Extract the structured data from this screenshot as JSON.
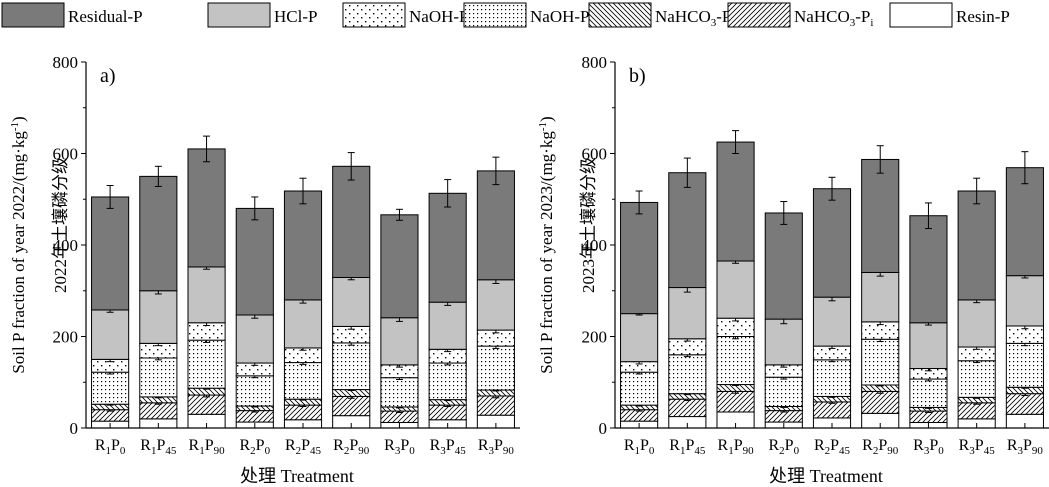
{
  "chart_data": [
    {
      "type": "bar",
      "stacked": true,
      "panel_label": "a)",
      "ylabel": "Soil P fraction of year 2022/(mg·kg⁻¹)",
      "ylabel_cn": "2022年土壤磷分级",
      "xlabel": "处理 Treatment",
      "ylim": [
        0,
        800
      ],
      "yticks": [
        0,
        200,
        400,
        600,
        800
      ],
      "categories": [
        {
          "main": "R",
          "s1": "1",
          "mid": "P",
          "s2": "0"
        },
        {
          "main": "R",
          "s1": "1",
          "mid": "P",
          "s2": "45"
        },
        {
          "main": "R",
          "s1": "1",
          "mid": "P",
          "s2": "90"
        },
        {
          "main": "R",
          "s1": "2",
          "mid": "P",
          "s2": "0"
        },
        {
          "main": "R",
          "s1": "2",
          "mid": "P",
          "s2": "45"
        },
        {
          "main": "R",
          "s1": "2",
          "mid": "P",
          "s2": "90"
        },
        {
          "main": "R",
          "s1": "3",
          "mid": "P",
          "s2": "0"
        },
        {
          "main": "R",
          "s1": "3",
          "mid": "P",
          "s2": "45"
        },
        {
          "main": "R",
          "s1": "3",
          "mid": "P",
          "s2": "90"
        }
      ],
      "series": [
        {
          "name": "Resin-P",
          "values": [
            15,
            20,
            30,
            13,
            18,
            27,
            12,
            18,
            28
          ],
          "errors": [
            0,
            0,
            0,
            0,
            0,
            0,
            0,
            0,
            0
          ]
        },
        {
          "name": "NaHCO3-Pi",
          "values": [
            25,
            35,
            42,
            25,
            32,
            42,
            25,
            32,
            42
          ],
          "errors": [
            3,
            3,
            4,
            3,
            3,
            4,
            3,
            3,
            4
          ]
        },
        {
          "name": "NaHCO3-Po",
          "values": [
            12,
            13,
            15,
            10,
            13,
            15,
            9,
            12,
            13
          ],
          "errors": [
            2,
            2,
            2,
            2,
            2,
            2,
            2,
            2,
            2
          ]
        },
        {
          "name": "NaOH-Pi",
          "values": [
            70,
            85,
            105,
            66,
            80,
            102,
            64,
            80,
            96
          ],
          "errors": [
            4,
            4,
            5,
            4,
            4,
            5,
            4,
            4,
            5
          ]
        },
        {
          "name": "NaOH-Po",
          "values": [
            28,
            32,
            38,
            28,
            32,
            36,
            28,
            30,
            35
          ],
          "errors": [
            5,
            5,
            6,
            5,
            5,
            6,
            5,
            5,
            6
          ]
        },
        {
          "name": "HCl-P",
          "values": [
            108,
            115,
            122,
            105,
            105,
            107,
            103,
            103,
            110
          ],
          "errors": [
            5,
            7,
            5,
            7,
            7,
            5,
            8,
            7,
            8
          ]
        },
        {
          "name": "Residual-P",
          "values": [
            247,
            250,
            258,
            233,
            238,
            243,
            225,
            238,
            238
          ],
          "errors": [
            25,
            22,
            28,
            25,
            28,
            30,
            12,
            30,
            30
          ]
        }
      ]
    },
    {
      "type": "bar",
      "stacked": true,
      "panel_label": "b)",
      "ylabel": "Soil P fraction of year 2023/(mg·kg⁻¹)",
      "ylabel_cn": "2023年土壤磷分级",
      "xlabel": "处理 Treatment",
      "ylim": [
        0,
        800
      ],
      "yticks": [
        0,
        200,
        400,
        600,
        800
      ],
      "categories": [
        {
          "main": "R",
          "s1": "1",
          "mid": "P",
          "s2": "0"
        },
        {
          "main": "R",
          "s1": "1",
          "mid": "P",
          "s2": "45"
        },
        {
          "main": "R",
          "s1": "1",
          "mid": "P",
          "s2": "90"
        },
        {
          "main": "R",
          "s1": "2",
          "mid": "P",
          "s2": "0"
        },
        {
          "main": "R",
          "s1": "2",
          "mid": "P",
          "s2": "45"
        },
        {
          "main": "R",
          "s1": "2",
          "mid": "P",
          "s2": "90"
        },
        {
          "main": "R",
          "s1": "3",
          "mid": "P",
          "s2": "0"
        },
        {
          "main": "R",
          "s1": "3",
          "mid": "P",
          "s2": "45"
        },
        {
          "main": "R",
          "s1": "3",
          "mid": "P",
          "s2": "90"
        }
      ],
      "series": [
        {
          "name": "Resin-P",
          "values": [
            15,
            25,
            35,
            13,
            22,
            32,
            12,
            20,
            30
          ],
          "errors": [
            0,
            0,
            0,
            0,
            0,
            0,
            0,
            0,
            0
          ]
        },
        {
          "name": "NaHCO3-Pi",
          "values": [
            25,
            38,
            45,
            25,
            35,
            48,
            25,
            35,
            45
          ],
          "errors": [
            3,
            3,
            4,
            3,
            3,
            4,
            3,
            3,
            4
          ]
        },
        {
          "name": "NaHCO3-Po",
          "values": [
            10,
            12,
            15,
            9,
            12,
            14,
            8,
            12,
            14
          ],
          "errors": [
            2,
            2,
            2,
            2,
            2,
            2,
            2,
            2,
            2
          ]
        },
        {
          "name": "NaOH-Pi",
          "values": [
            72,
            85,
            105,
            64,
            80,
            100,
            62,
            80,
            96
          ],
          "errors": [
            4,
            4,
            5,
            4,
            4,
            5,
            4,
            4,
            5
          ]
        },
        {
          "name": "NaOH-Po",
          "values": [
            23,
            35,
            40,
            27,
            30,
            38,
            23,
            30,
            38
          ],
          "errors": [
            5,
            5,
            6,
            5,
            5,
            6,
            5,
            5,
            6
          ]
        },
        {
          "name": "HCl-P",
          "values": [
            105,
            112,
            125,
            100,
            107,
            108,
            100,
            103,
            110
          ],
          "errors": [
            3,
            10,
            5,
            10,
            8,
            8,
            5,
            6,
            5
          ]
        },
        {
          "name": "Residual-P",
          "values": [
            243,
            251,
            260,
            232,
            237,
            247,
            234,
            238,
            236
          ],
          "errors": [
            25,
            32,
            25,
            25,
            25,
            30,
            28,
            28,
            35
          ]
        }
      ]
    }
  ],
  "legend": [
    {
      "main": "Residual-P",
      "sub": ""
    },
    {
      "main": "HCl-P",
      "sub": ""
    },
    {
      "main": "NaOH-P",
      "sub": "o"
    },
    {
      "main": "NaOH-P",
      "sub": "i"
    },
    {
      "main": "NaHCO",
      "sub3": "3",
      "mid": "-P",
      "sub": "o"
    },
    {
      "main": "NaHCO",
      "sub3": "3",
      "mid": "-P",
      "sub": "i"
    },
    {
      "main": "Resin-P",
      "sub": ""
    }
  ]
}
